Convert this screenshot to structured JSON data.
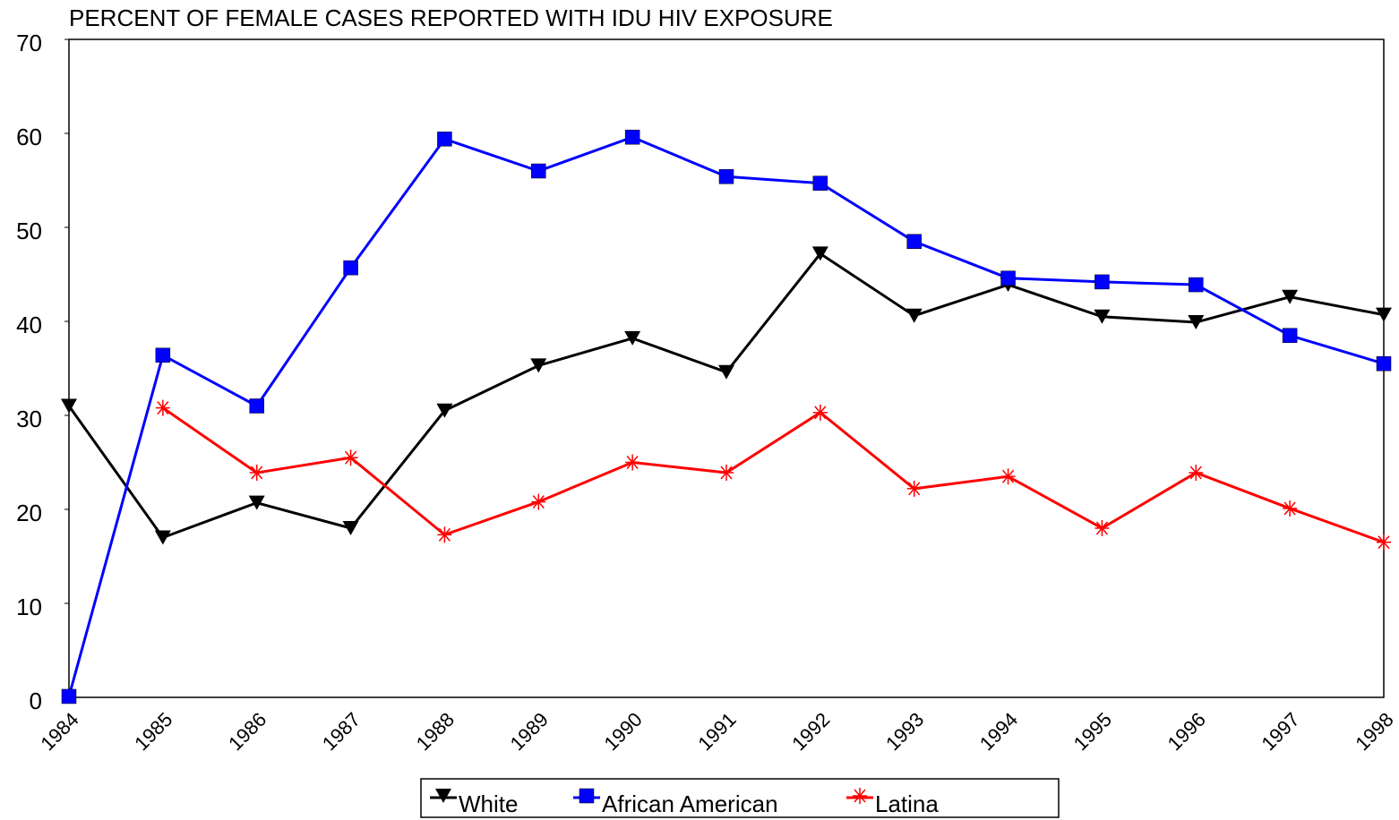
{
  "chart_data": {
    "type": "line",
    "title": "PERCENT OF FEMALE CASES REPORTED WITH IDU HIV EXPOSURE",
    "categories": [
      "1984",
      "1985",
      "1986",
      "1987",
      "1988",
      "1989",
      "1990",
      "1991",
      "1992",
      "1993",
      "1994",
      "1995",
      "1996",
      "1997",
      "1998"
    ],
    "series": [
      {
        "name": "White",
        "color": "#000000",
        "marker": "triangle-down",
        "values": [
          31.0,
          17.0,
          20.7,
          18.0,
          30.5,
          35.3,
          38.2,
          34.6,
          47.2,
          40.6,
          43.9,
          40.5,
          39.9,
          42.6,
          40.7
        ]
      },
      {
        "name": "African American",
        "color": "#0000ff",
        "marker": "square",
        "values": [
          0.1,
          36.4,
          31.0,
          45.7,
          59.4,
          56.0,
          59.6,
          55.4,
          54.7,
          48.5,
          44.6,
          44.2,
          43.9,
          38.5,
          35.5
        ]
      },
      {
        "name": "Latina",
        "color": "#ff0000",
        "marker": "asterisk",
        "values": [
          null,
          30.8,
          23.9,
          25.5,
          17.3,
          20.8,
          25.0,
          23.9,
          30.3,
          22.2,
          23.5,
          18.0,
          23.9,
          20.1,
          16.5
        ]
      }
    ],
    "ylim": [
      0,
      70
    ],
    "yticks": [
      0,
      10,
      20,
      30,
      40,
      50,
      60,
      70
    ],
    "legend": "bottom"
  }
}
